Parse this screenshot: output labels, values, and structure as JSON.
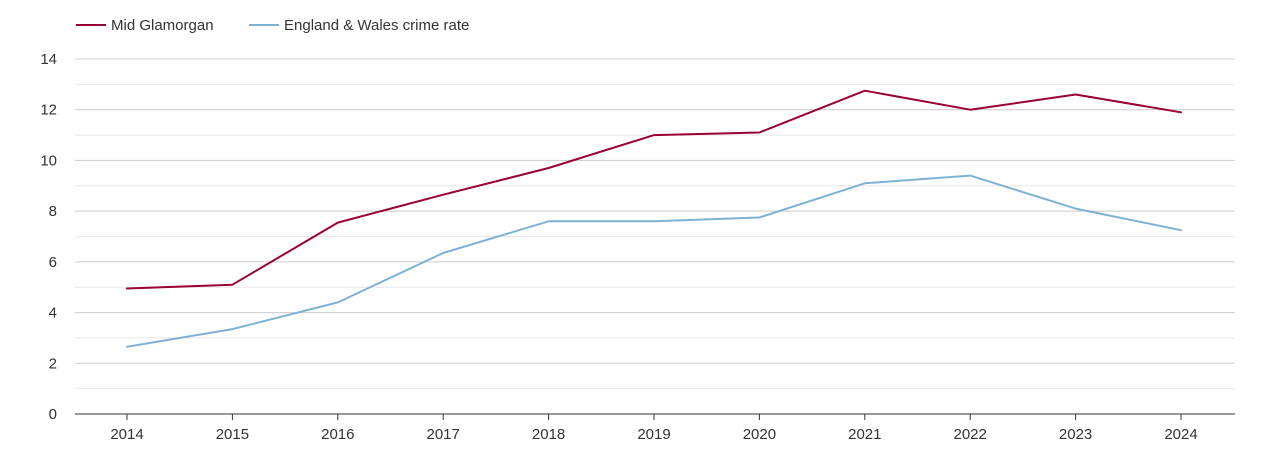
{
  "chart_data": {
    "type": "line",
    "title": "",
    "xlabel": "",
    "ylabel": "",
    "x": [
      "2014",
      "2015",
      "2016",
      "2017",
      "2018",
      "2019",
      "2020",
      "2021",
      "2022",
      "2023",
      "2024"
    ],
    "ylim": [
      0,
      14
    ],
    "yticks": [
      0,
      2,
      4,
      6,
      8,
      10,
      12,
      14
    ],
    "grid": true,
    "legend_position": "top-left",
    "series": [
      {
        "name": "Mid Glamorgan",
        "color": "#990033",
        "values": [
          4.95,
          5.1,
          7.55,
          8.65,
          9.7,
          11.0,
          11.1,
          12.75,
          12.0,
          12.6,
          11.9
        ]
      },
      {
        "name": "England & Wales crime rate",
        "color": "#7eb2d4",
        "values": [
          2.65,
          3.35,
          4.4,
          6.35,
          7.6,
          7.6,
          7.75,
          9.1,
          9.4,
          8.1,
          7.25
        ]
      }
    ]
  }
}
